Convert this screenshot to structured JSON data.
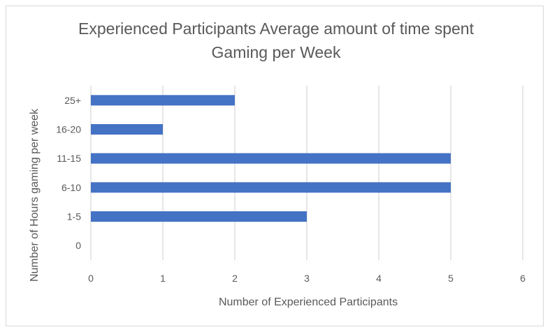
{
  "chart_data": {
    "type": "bar",
    "orientation": "horizontal",
    "title": "Experienced Participants Average amount of time spent Gaming per Week",
    "xlabel": "Number of Experienced Participants",
    "ylabel": "Number of Hours gaming per week",
    "categories": [
      "0",
      "1-5",
      "6-10",
      "11-15",
      "16-20",
      "25+"
    ],
    "values": [
      0,
      3,
      5,
      5,
      1,
      2
    ],
    "xlim": [
      0,
      6
    ],
    "xticks": [
      "0",
      "1",
      "2",
      "3",
      "4",
      "5",
      "6"
    ],
    "grid": "vertical",
    "legend": "none",
    "bar_color": "#4472c4",
    "grid_color": "#d9d9d9",
    "text_color": "#595959"
  }
}
